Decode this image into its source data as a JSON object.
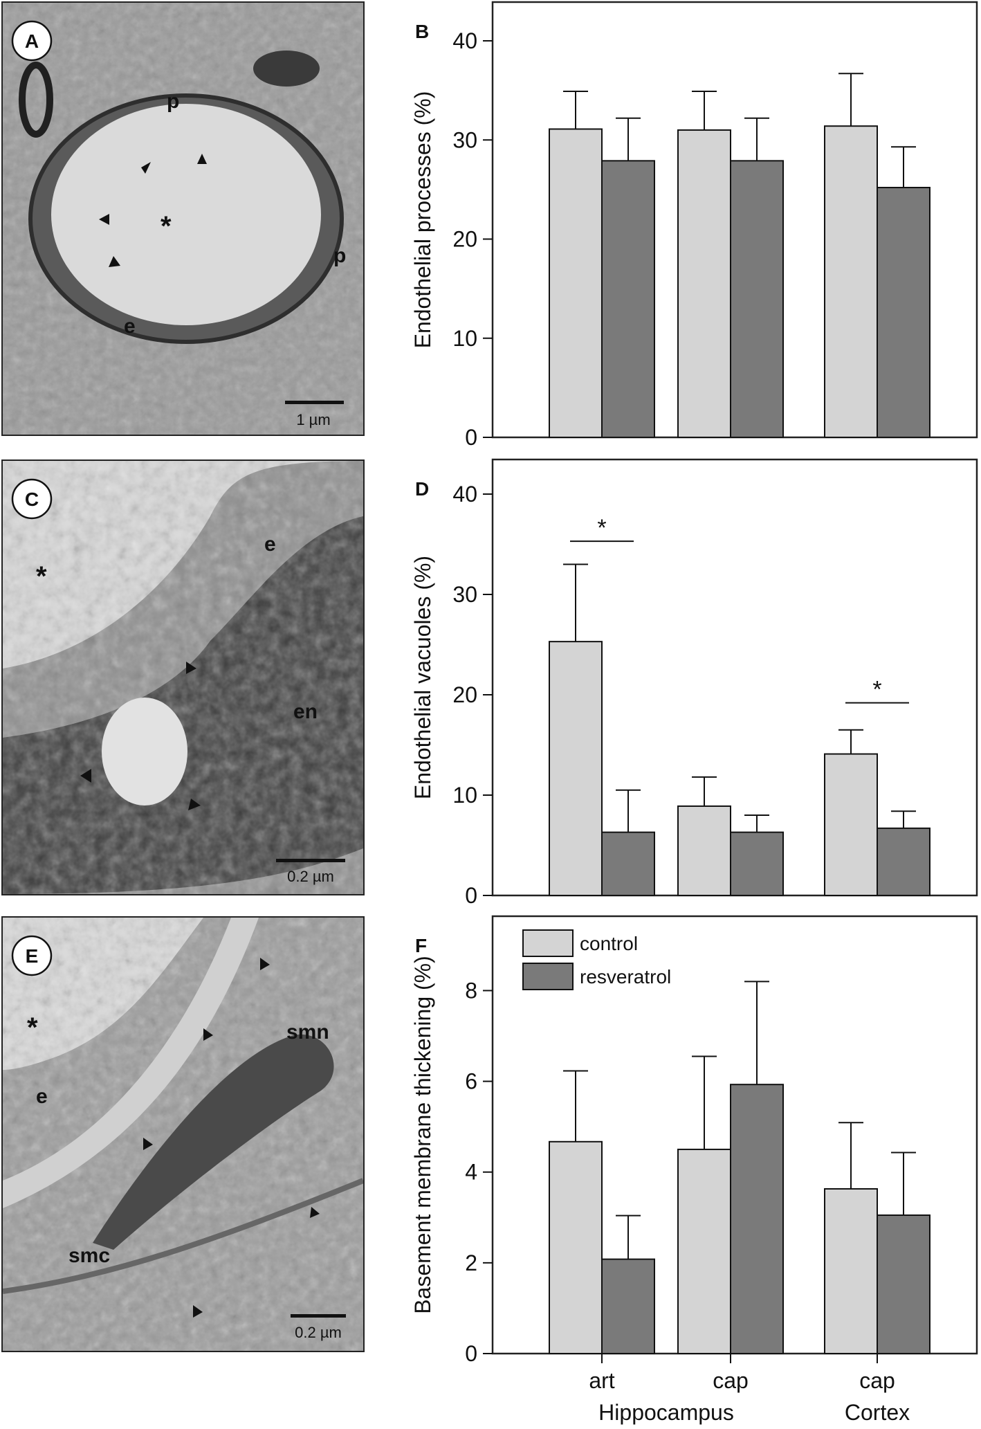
{
  "colors": {
    "control": "#d4d4d4",
    "resveratrol": "#7a7a7a",
    "frame": "#222222"
  },
  "micrographs": [
    {
      "letter": "A",
      "scale_bar": "1 µm",
      "labels": [
        "p",
        "p",
        "e",
        "*"
      ]
    },
    {
      "letter": "C",
      "scale_bar": "0.2 µm",
      "labels": [
        "e",
        "en",
        "*"
      ]
    },
    {
      "letter": "E",
      "scale_bar": "0.2 µm",
      "labels": [
        "smn",
        "smc",
        "e",
        "*"
      ]
    }
  ],
  "chart_data": [
    {
      "panel": "B",
      "type": "bar",
      "ylabel": "Endothelial processes (%)",
      "ylim": [
        0,
        40
      ],
      "yticks": [
        "0",
        "10",
        "20",
        "30",
        "40"
      ],
      "series": [
        {
          "name": "control",
          "values": [
            31.1,
            31.0,
            31.4
          ],
          "errors": [
            3.8,
            3.9,
            5.3
          ]
        },
        {
          "name": "resveratrol",
          "values": [
            27.9,
            27.9,
            25.2
          ],
          "errors": [
            4.3,
            4.3,
            4.1
          ]
        }
      ],
      "significance": []
    },
    {
      "panel": "D",
      "type": "bar",
      "ylabel": "Endothelial vacuoles (%)",
      "ylim": [
        0,
        40
      ],
      "yticks": [
        "0",
        "10",
        "20",
        "30",
        "40"
      ],
      "series": [
        {
          "name": "control",
          "values": [
            25.3,
            8.9,
            14.1
          ],
          "errors": [
            7.7,
            2.9,
            2.4
          ]
        },
        {
          "name": "resveratrol",
          "values": [
            6.3,
            6.3,
            6.7
          ],
          "errors": [
            4.2,
            1.7,
            1.7
          ]
        }
      ],
      "significance": [
        {
          "group": 0,
          "label": "*",
          "y": 35.3
        },
        {
          "group": 2,
          "label": "*",
          "y": 19.2
        }
      ]
    },
    {
      "panel": "F",
      "type": "bar",
      "ylabel": "Basement membrane thickening (%)",
      "ylim": [
        0,
        8.8
      ],
      "yticks": [
        "0",
        "2",
        "4",
        "6",
        "8"
      ],
      "series": [
        {
          "name": "control",
          "values": [
            4.67,
            4.5,
            3.63
          ],
          "errors": [
            1.56,
            2.05,
            1.46
          ]
        },
        {
          "name": "resveratrol",
          "values": [
            2.08,
            5.93,
            3.05
          ],
          "errors": [
            0.96,
            2.27,
            1.38
          ]
        }
      ],
      "significance": [],
      "legend": {
        "position": "top-left",
        "entries": [
          "control",
          "resveratrol"
        ]
      }
    }
  ],
  "x_axis": {
    "categories": [
      "art",
      "cap",
      "cap"
    ],
    "group_labels": [
      {
        "label": "Hippocampus",
        "spans": [
          0,
          1
        ]
      },
      {
        "label": "Cortex",
        "spans": [
          2,
          2
        ]
      }
    ]
  }
}
